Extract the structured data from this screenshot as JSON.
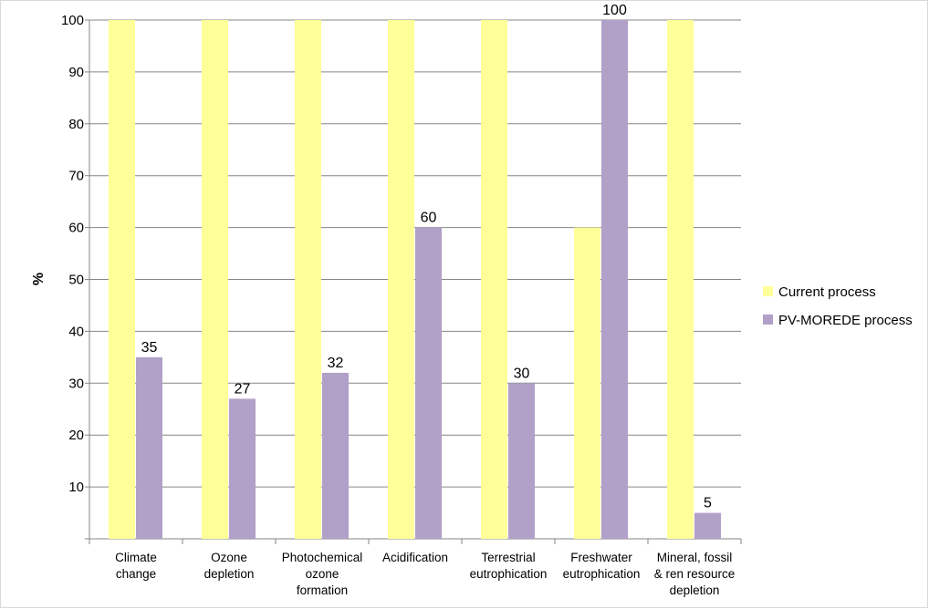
{
  "chart_data": {
    "type": "bar",
    "title": "",
    "xlabel": "",
    "ylabel": "%",
    "ylim": [
      0,
      100
    ],
    "yticks": [
      10,
      20,
      30,
      40,
      50,
      60,
      70,
      80,
      90,
      100
    ],
    "grid": true,
    "legend_position": "right",
    "categories": [
      [
        "Climate",
        "change"
      ],
      [
        "Ozone",
        "depletion"
      ],
      [
        "Photochemical",
        "ozone",
        "formation"
      ],
      [
        "Acidification"
      ],
      [
        "Terrestrial",
        "eutrophication"
      ],
      [
        "Freshwater",
        "eutrophication"
      ],
      [
        "Mineral, fossil",
        "& ren resource",
        "depletion"
      ]
    ],
    "series": [
      {
        "name": "Current process",
        "color": "#ffff99",
        "values": [
          100,
          100,
          100,
          100,
          100,
          60,
          100
        ],
        "labels": [
          "",
          "",
          "",
          "",
          "",
          "",
          ""
        ]
      },
      {
        "name": "PV-MOREDE process",
        "color": "#b1a0c7",
        "values": [
          35,
          27,
          32,
          60,
          30,
          100,
          5
        ],
        "labels": [
          "35",
          "27",
          "32",
          "60",
          "30",
          "100",
          "5"
        ]
      }
    ]
  }
}
